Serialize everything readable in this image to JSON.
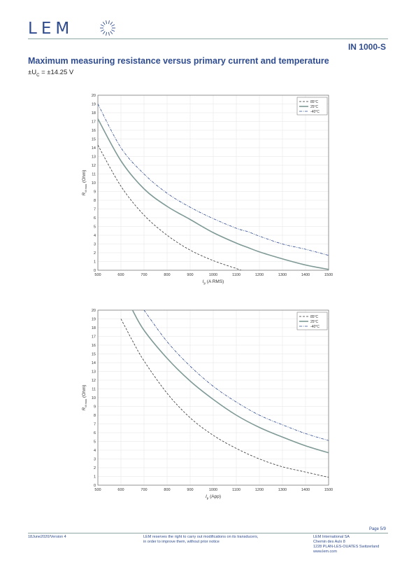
{
  "header": {
    "logo_text": "LEM",
    "model": "IN 1000-S"
  },
  "section": {
    "title": "Maximum measuring resistance versus primary current and temperature",
    "supply_prefix": "±U",
    "supply_sub": "C",
    "supply_value": "= ±14.25 V"
  },
  "colors": {
    "brand": "#2f4c8f",
    "rule": "#8fa7a4",
    "line_85": "#333333",
    "line_25": "#7f9a96",
    "line_m40": "#2f4c8f"
  },
  "chart_data": [
    {
      "type": "line",
      "xlabel_main": "I",
      "xlabel_sub": "p",
      "xlabel_rest": " (A RMS)",
      "ylabel_main": "R",
      "ylabel_sub": "M max",
      "ylabel_rest": " (Ohm)",
      "xlim": [
        500,
        1500
      ],
      "ylim": [
        0,
        20
      ],
      "xticks": [
        500,
        600,
        700,
        800,
        900,
        1000,
        1100,
        1200,
        1300,
        1400,
        1500
      ],
      "yticks": [
        0,
        1,
        2,
        3,
        4,
        5,
        6,
        7,
        8,
        9,
        10,
        11,
        12,
        13,
        14,
        15,
        16,
        17,
        18,
        19,
        20
      ],
      "grid": true,
      "legend_position": "top-right",
      "x": [
        500,
        600,
        700,
        800,
        900,
        1000,
        1100,
        1150,
        1200,
        1300,
        1400,
        1500
      ],
      "series": [
        {
          "name": "85°C",
          "style": "dashed",
          "values": [
            14.3,
            9.6,
            6.3,
            4.0,
            2.3,
            1.1,
            0.2,
            null,
            null,
            null,
            null,
            null
          ]
        },
        {
          "name": "25°C",
          "style": "solid",
          "values": [
            17.3,
            12.5,
            9.3,
            7.3,
            5.8,
            4.3,
            3.1,
            2.6,
            2.1,
            1.3,
            0.6,
            0.1
          ]
        },
        {
          "name": "-40°C",
          "style": "dashdot",
          "values": [
            19.0,
            14.0,
            11.0,
            8.8,
            7.2,
            5.9,
            4.8,
            4.4,
            3.9,
            3.0,
            2.4,
            1.7
          ]
        }
      ]
    },
    {
      "type": "line",
      "xlabel_main": "I",
      "xlabel_sub": "p",
      "xlabel_rest": " (App)",
      "ylabel_main": "R",
      "ylabel_sub": "M max",
      "ylabel_rest": " (Ohm)",
      "xlim": [
        500,
        1500
      ],
      "ylim": [
        0,
        20
      ],
      "xticks": [
        500,
        600,
        700,
        800,
        900,
        1000,
        1100,
        1200,
        1300,
        1400,
        1500
      ],
      "yticks": [
        0,
        1,
        2,
        3,
        4,
        5,
        6,
        7,
        8,
        9,
        10,
        11,
        12,
        13,
        14,
        15,
        16,
        17,
        18,
        19,
        20
      ],
      "grid": true,
      "legend_position": "top-right",
      "x": [
        600,
        620,
        650,
        700,
        800,
        900,
        1000,
        1100,
        1200,
        1300,
        1400,
        1500
      ],
      "series": [
        {
          "name": "85°C",
          "style": "dashed",
          "values": [
            19.0,
            18.0,
            16.5,
            14.2,
            10.5,
            7.7,
            5.7,
            4.2,
            3.0,
            2.1,
            1.5,
            0.9
          ]
        },
        {
          "name": "25°C",
          "style": "solid",
          "values": [
            null,
            null,
            20.0,
            17.7,
            14.5,
            11.9,
            9.8,
            8.0,
            6.6,
            5.5,
            4.5,
            3.7
          ]
        },
        {
          "name": "-40°C",
          "style": "dashdot",
          "values": [
            null,
            null,
            null,
            20.0,
            16.4,
            13.6,
            11.3,
            9.5,
            8.0,
            6.9,
            5.9,
            5.1
          ]
        }
      ]
    }
  ],
  "footer": {
    "page": "Page 5/9",
    "date_version": "18June2020/Version 4",
    "disclaimer_1": "LEM reserves the right to carry out modifications on its transducers,",
    "disclaimer_2": "in order to improve them, without prior notice",
    "company": "LEM International SA",
    "address_1": "Chemin des Aulx 8",
    "address_2": "1228 PLAN-LES-OUATES Switzerland",
    "website": "www.lem.com"
  }
}
